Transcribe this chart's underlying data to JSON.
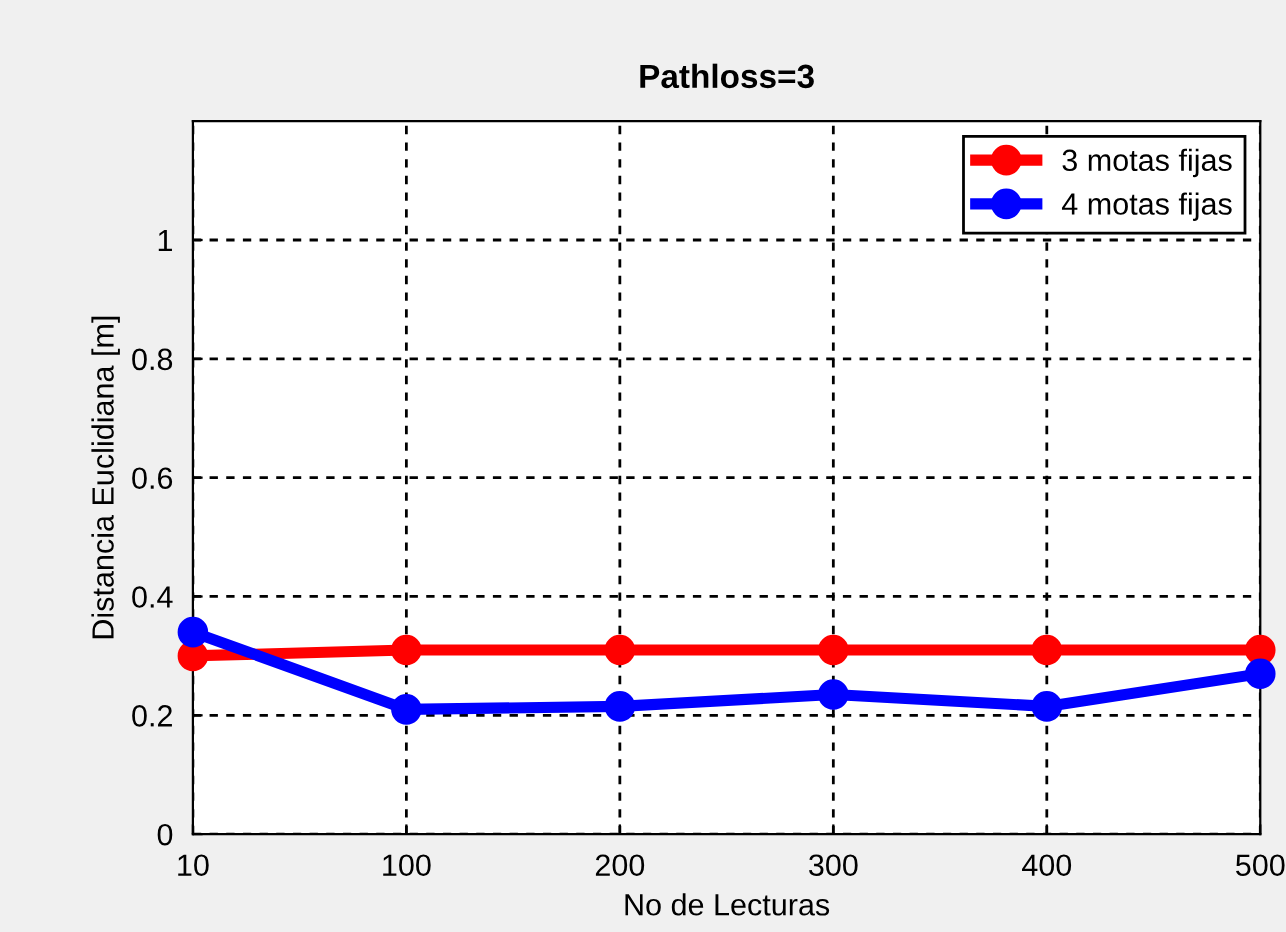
{
  "chart_data": {
    "type": "line",
    "title": "Pathloss=3",
    "xlabel": "No de Lecturas",
    "ylabel": "Distancia Euclidiana [m]",
    "categories": [
      "10",
      "100",
      "200",
      "300",
      "400",
      "500"
    ],
    "series": [
      {
        "name": "3 motas fijas",
        "color": "#ff0000",
        "values": [
          0.3,
          0.31,
          0.31,
          0.31,
          0.31,
          0.31
        ]
      },
      {
        "name": "4 motas fijas",
        "color": "#0000ff",
        "values": [
          0.34,
          0.21,
          0.215,
          0.235,
          0.215,
          0.27
        ]
      }
    ],
    "ylim": [
      0,
      1.2
    ],
    "yticks": [
      0,
      0.2,
      0.4,
      0.6,
      0.8,
      1
    ],
    "grid": true,
    "legend": "top right",
    "marker": "circle",
    "line_style": "solid"
  }
}
